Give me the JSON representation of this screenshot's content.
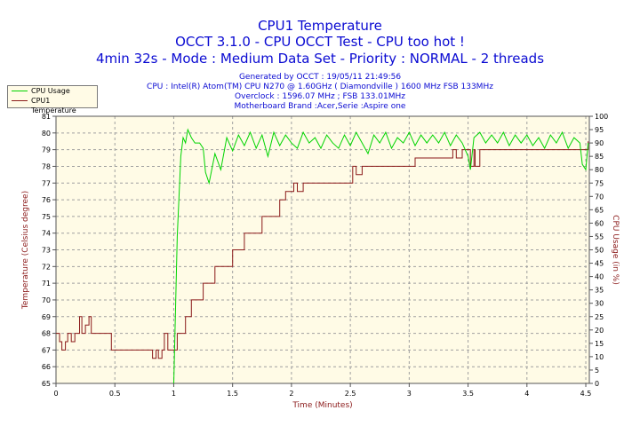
{
  "titles": {
    "line1": "CPU1 Temperature",
    "line2": "OCCT 3.1.0 - CPU OCCT Test - CPU too hot !",
    "line3": "4min 32s - Mode : Medium Data Set - Priority : NORMAL - 2 threads"
  },
  "info": {
    "generated": "Generated by OCCT : 19/05/11 21:49:56",
    "cpu": "CPU : Intel(R) Atom(TM) CPU N270 @ 1.60GHz ( Diamondville ) 1600 MHz FSB 133MHz",
    "overclock": "Overclock : 1596.07 MHz ; FSB 133.01MHz",
    "motherboard": "Motherboard Brand :Acer,Serie :Aspire one"
  },
  "legend": {
    "usage": "CPU Usage",
    "temp": "CPU1 Temperature"
  },
  "chart_data": {
    "type": "line",
    "xlabel": "Time (Minutes)",
    "ylabel_left": "Temperature (Celsius degree)",
    "ylabel_right": "CPU Usage (in %)",
    "xlim": [
      0,
      4.53
    ],
    "ylim_left": [
      65,
      81
    ],
    "ylim_right": [
      0,
      100
    ],
    "x_ticks": [
      "0",
      "0.5",
      "1",
      "1.5",
      "2",
      "2.5",
      "3",
      "3.5",
      "4",
      "4.5"
    ],
    "y_left_ticks": [
      "65",
      "66",
      "67",
      "68",
      "69",
      "70",
      "71",
      "72",
      "73",
      "74",
      "75",
      "76",
      "77",
      "78",
      "79",
      "80",
      "81"
    ],
    "y_right_ticks": [
      "0",
      "5",
      "10",
      "15",
      "20",
      "25",
      "30",
      "35",
      "40",
      "45",
      "50",
      "55",
      "60",
      "65",
      "70",
      "75",
      "80",
      "85",
      "90",
      "95",
      "100"
    ],
    "grid": true,
    "legend_position": "top-left",
    "colors": {
      "usage": "#00d400",
      "temp": "#8b1a1a",
      "grid": "#a0a0a0",
      "axis_text": "#8b1a1a",
      "tick_text": "#000000"
    },
    "series": [
      {
        "name": "CPU1 Temperature",
        "axis": "left",
        "points": [
          [
            0,
            68
          ],
          [
            0.03,
            67.5
          ],
          [
            0.05,
            67
          ],
          [
            0.08,
            67.5
          ],
          [
            0.1,
            68
          ],
          [
            0.13,
            67.5
          ],
          [
            0.16,
            68
          ],
          [
            0.2,
            69
          ],
          [
            0.22,
            68
          ],
          [
            0.25,
            68.5
          ],
          [
            0.28,
            69
          ],
          [
            0.3,
            68
          ],
          [
            0.35,
            68
          ],
          [
            0.45,
            68
          ],
          [
            0.47,
            67
          ],
          [
            0.6,
            67
          ],
          [
            0.8,
            67
          ],
          [
            0.82,
            66.5
          ],
          [
            0.85,
            67
          ],
          [
            0.87,
            66.5
          ],
          [
            0.9,
            67
          ],
          [
            0.92,
            68
          ],
          [
            0.95,
            67
          ],
          [
            0.97,
            67
          ],
          [
            1.0,
            67
          ],
          [
            1.03,
            68
          ],
          [
            1.08,
            68
          ],
          [
            1.1,
            69
          ],
          [
            1.15,
            70
          ],
          [
            1.22,
            70
          ],
          [
            1.25,
            71
          ],
          [
            1.3,
            71
          ],
          [
            1.35,
            72
          ],
          [
            1.45,
            72
          ],
          [
            1.5,
            73
          ],
          [
            1.55,
            73
          ],
          [
            1.6,
            74
          ],
          [
            1.7,
            74
          ],
          [
            1.75,
            75
          ],
          [
            1.85,
            75
          ],
          [
            1.9,
            76
          ],
          [
            1.92,
            76
          ],
          [
            1.95,
            76.5
          ],
          [
            2.0,
            76.5
          ],
          [
            2.02,
            77
          ],
          [
            2.05,
            76.5
          ],
          [
            2.1,
            77
          ],
          [
            2.5,
            77
          ],
          [
            2.52,
            78
          ],
          [
            2.55,
            77.5
          ],
          [
            2.6,
            78
          ],
          [
            3.0,
            78
          ],
          [
            3.05,
            78.5
          ],
          [
            3.35,
            78.5
          ],
          [
            3.37,
            79
          ],
          [
            3.4,
            78.5
          ],
          [
            3.45,
            79
          ],
          [
            3.5,
            79
          ],
          [
            3.52,
            78
          ],
          [
            3.55,
            79
          ],
          [
            3.56,
            78
          ],
          [
            3.6,
            79
          ],
          [
            4.5,
            79
          ],
          [
            4.52,
            79.5
          ]
        ]
      },
      {
        "name": "CPU Usage",
        "axis": "right",
        "points": [
          [
            1.0,
            0
          ],
          [
            1.03,
            55
          ],
          [
            1.06,
            85
          ],
          [
            1.08,
            92
          ],
          [
            1.1,
            90
          ],
          [
            1.12,
            95
          ],
          [
            1.15,
            92
          ],
          [
            1.18,
            90
          ],
          [
            1.22,
            90
          ],
          [
            1.25,
            88
          ],
          [
            1.27,
            79
          ],
          [
            1.3,
            75
          ],
          [
            1.35,
            86
          ],
          [
            1.4,
            80
          ],
          [
            1.45,
            92
          ],
          [
            1.5,
            87
          ],
          [
            1.55,
            93
          ],
          [
            1.6,
            89
          ],
          [
            1.65,
            94
          ],
          [
            1.7,
            88
          ],
          [
            1.75,
            93
          ],
          [
            1.8,
            85
          ],
          [
            1.85,
            94
          ],
          [
            1.9,
            89
          ],
          [
            1.95,
            93
          ],
          [
            2.0,
            90
          ],
          [
            2.05,
            88
          ],
          [
            2.1,
            94
          ],
          [
            2.15,
            90
          ],
          [
            2.2,
            92
          ],
          [
            2.25,
            88
          ],
          [
            2.3,
            93
          ],
          [
            2.35,
            90
          ],
          [
            2.4,
            88
          ],
          [
            2.45,
            93
          ],
          [
            2.5,
            89
          ],
          [
            2.55,
            94
          ],
          [
            2.6,
            90
          ],
          [
            2.65,
            86
          ],
          [
            2.7,
            93
          ],
          [
            2.75,
            90
          ],
          [
            2.8,
            94
          ],
          [
            2.85,
            88
          ],
          [
            2.9,
            92
          ],
          [
            2.95,
            90
          ],
          [
            3.0,
            94
          ],
          [
            3.05,
            89
          ],
          [
            3.1,
            93
          ],
          [
            3.15,
            90
          ],
          [
            3.2,
            93
          ],
          [
            3.25,
            90
          ],
          [
            3.3,
            94
          ],
          [
            3.35,
            89
          ],
          [
            3.4,
            93
          ],
          [
            3.45,
            90
          ],
          [
            3.5,
            85
          ],
          [
            3.52,
            80
          ],
          [
            3.55,
            92
          ],
          [
            3.6,
            94
          ],
          [
            3.65,
            90
          ],
          [
            3.7,
            93
          ],
          [
            3.75,
            90
          ],
          [
            3.8,
            94
          ],
          [
            3.85,
            89
          ],
          [
            3.9,
            93
          ],
          [
            3.95,
            90
          ],
          [
            4.0,
            93
          ],
          [
            4.05,
            89
          ],
          [
            4.1,
            92
          ],
          [
            4.15,
            88
          ],
          [
            4.2,
            93
          ],
          [
            4.25,
            90
          ],
          [
            4.3,
            94
          ],
          [
            4.35,
            88
          ],
          [
            4.4,
            92
          ],
          [
            4.45,
            90
          ],
          [
            4.47,
            82
          ],
          [
            4.5,
            80
          ],
          [
            4.52,
            90
          ]
        ]
      }
    ]
  }
}
